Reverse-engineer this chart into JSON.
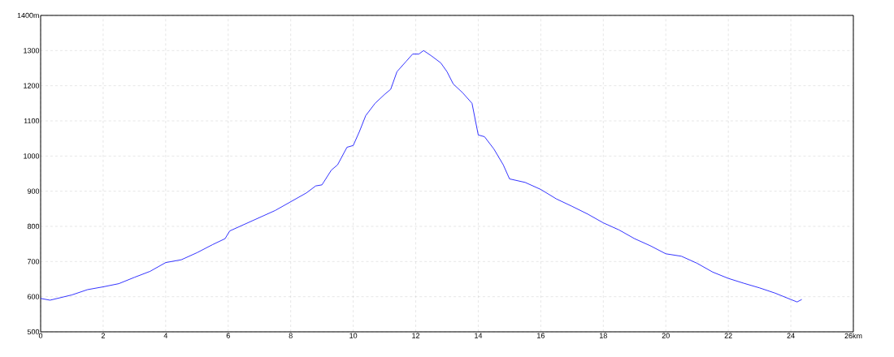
{
  "chart_data": {
    "type": "line",
    "x": [
      0,
      0.3,
      1,
      1.5,
      2,
      2.5,
      3,
      3.5,
      4,
      4.5,
      5,
      5.5,
      5.9,
      6.05,
      6.5,
      7,
      7.5,
      8,
      8.5,
      8.8,
      9,
      9.05,
      9.3,
      9.5,
      9.8,
      10,
      10.2,
      10.4,
      10.7,
      11,
      11.2,
      11.4,
      11.7,
      11.9,
      12.1,
      12.25,
      12.5,
      12.8,
      13,
      13.2,
      13.5,
      13.8,
      14,
      14.2,
      14.5,
      14.8,
      15,
      15.5,
      16,
      16.5,
      17,
      17.5,
      18,
      18.5,
      19,
      19.5,
      20,
      20.5,
      21,
      21.5,
      22,
      22.5,
      23,
      23.5,
      24,
      24.2,
      24.35
    ],
    "series": [
      {
        "color": "#0000ff",
        "values": [
          595,
          590,
          605,
          620,
          628,
          637,
          655,
          672,
          697,
          705,
          725,
          748,
          765,
          787,
          805,
          825,
          845,
          870,
          895,
          915,
          918,
          925,
          960,
          975,
          1025,
          1030,
          1070,
          1115,
          1150,
          1175,
          1190,
          1240,
          1270,
          1290,
          1290,
          1300,
          1285,
          1265,
          1240,
          1205,
          1180,
          1150,
          1060,
          1055,
          1020,
          975,
          935,
          925,
          905,
          878,
          857,
          835,
          810,
          790,
          765,
          745,
          722,
          715,
          695,
          670,
          652,
          638,
          625,
          610,
          592,
          585,
          592
        ]
      }
    ],
    "xlim": [
      0,
      26
    ],
    "ylim": [
      500,
      1400
    ],
    "xticks": [
      0,
      2,
      4,
      6,
      8,
      10,
      12,
      14,
      16,
      18,
      20,
      22,
      24,
      {
        "value": 26,
        "label": "26km"
      }
    ],
    "yticks": [
      500,
      600,
      700,
      800,
      900,
      1000,
      1100,
      1200,
      1300,
      {
        "value": 1400,
        "label": "1400m"
      }
    ],
    "grid": true,
    "line_style": "solid",
    "marker": "none"
  }
}
